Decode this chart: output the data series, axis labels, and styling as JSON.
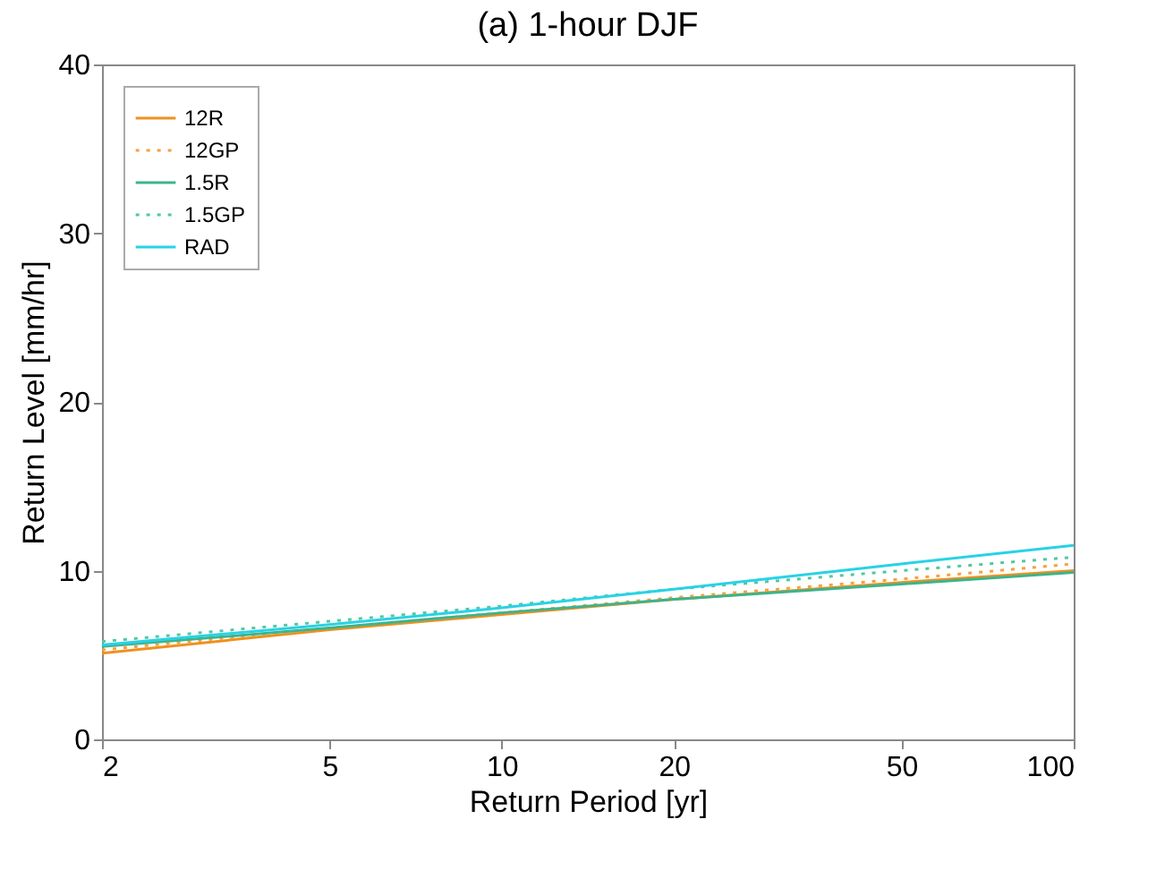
{
  "chart_data": {
    "type": "line",
    "title": "(a) 1-hour DJF",
    "xlabel": "Return Period [yr]",
    "ylabel": "Return Level [mm/hr]",
    "x": [
      2,
      5,
      10,
      20,
      50,
      100
    ],
    "log": "x",
    "xlim": [
      2,
      100
    ],
    "xticks": [
      2,
      5,
      10,
      20,
      50,
      100
    ],
    "ylim": [
      0,
      40
    ],
    "yticks": [
      0,
      10,
      20,
      30,
      40
    ],
    "grid": false,
    "legend": "top left",
    "series": [
      {
        "name": "12R",
        "color": "#f0901e",
        "line_style": "solid",
        "values": [
          5.1,
          6.5,
          7.4,
          8.3,
          9.3,
          10.0
        ]
      },
      {
        "name": "12GP",
        "color": "#f5a040",
        "line_style": "dotted",
        "values": [
          5.3,
          6.6,
          7.5,
          8.4,
          9.5,
          10.4
        ]
      },
      {
        "name": "1.5R",
        "color": "#3cb48c",
        "line_style": "solid",
        "values": [
          5.5,
          6.6,
          7.5,
          8.3,
          9.2,
          9.9
        ]
      },
      {
        "name": "1.5GP",
        "color": "#50c8a0",
        "line_style": "dotted",
        "values": [
          5.8,
          7.0,
          7.9,
          8.9,
          10.0,
          10.8
        ]
      },
      {
        "name": "RAD",
        "color": "#28d2e6",
        "line_style": "solid",
        "values": [
          5.6,
          6.8,
          7.8,
          8.9,
          10.4,
          11.5
        ]
      }
    ]
  }
}
